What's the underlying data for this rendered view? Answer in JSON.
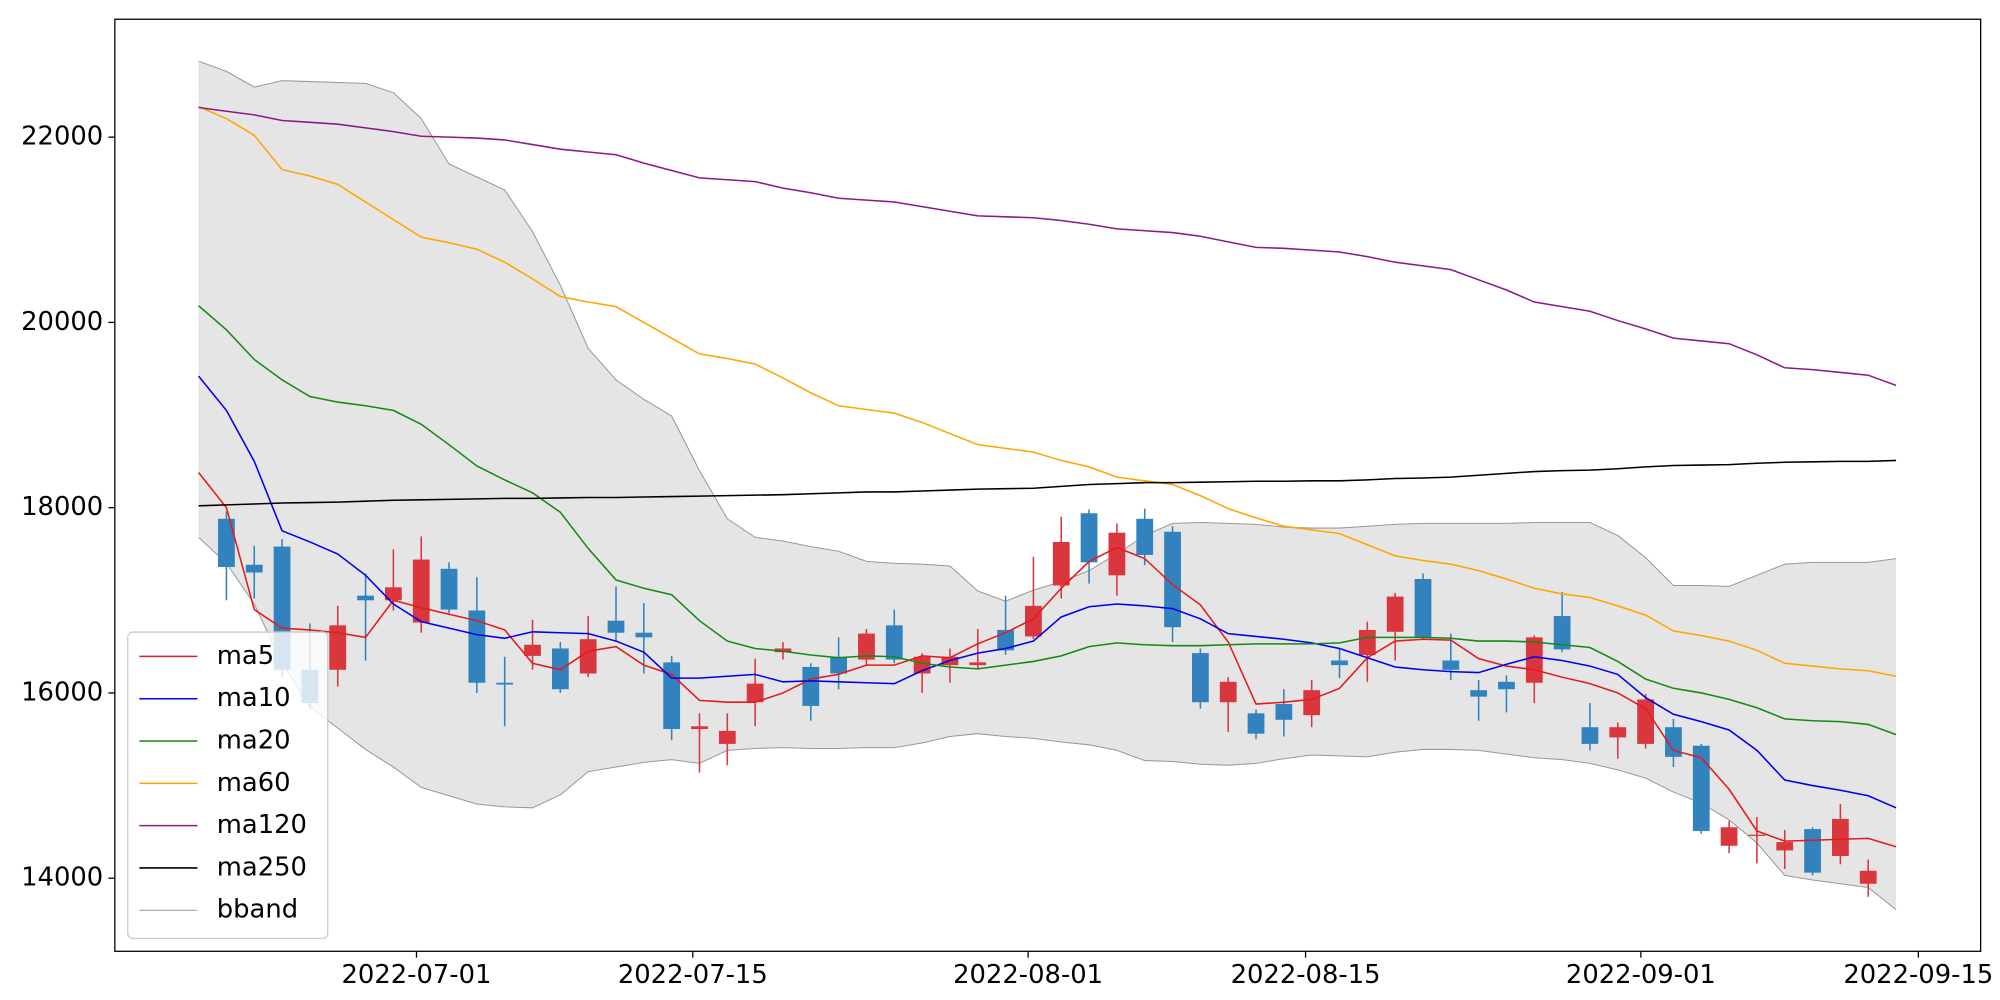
{
  "chart_data": {
    "type": "candlestick",
    "xlim": [
      -3.01,
      64.04
    ],
    "xticks": [
      {
        "value": 7.83,
        "label": "2022-07-01"
      },
      {
        "value": 17.76,
        "label": "2022-07-15"
      },
      {
        "value": 29.81,
        "label": "2022-08-01"
      },
      {
        "value": 39.78,
        "label": "2022-08-15"
      },
      {
        "value": 51.83,
        "label": "2022-09-01"
      },
      {
        "value": 61.8,
        "label": "2022-09-15"
      }
    ],
    "ylim": [
      13211,
      23273
    ],
    "yticks": [
      14000,
      16000,
      18000,
      20000,
      22000
    ],
    "legend": "lower left",
    "candles": {
      "up_color": "#d9363e",
      "down_color": "#3182bd",
      "open": [
        null,
        17880,
        17384,
        17580,
        16250,
        16250,
        17050,
        17000,
        16760,
        17340,
        16890,
        16110,
        16400,
        16480,
        16210,
        16780,
        16650,
        16330,
        15610,
        15450,
        15900,
        16440,
        16280,
        16390,
        16360,
        16730,
        16210,
        16300,
        16300,
        16680,
        16610,
        17160,
        17940,
        17270,
        17880,
        17740,
        16430,
        15900,
        15780,
        15880,
        15760,
        16350,
        16410,
        16660,
        17230,
        16350,
        16030,
        16120,
        16110,
        16830,
        15630,
        15520,
        15450,
        15630,
        15430,
        14350,
        14460,
        14300,
        14530,
        14240,
        13940,
        null
      ],
      "close": [
        null,
        17360,
        17300,
        16250,
        15890,
        16730,
        17000,
        17140,
        17440,
        16900,
        16110,
        16090,
        16520,
        16040,
        16580,
        16650,
        16600,
        15610,
        15640,
        15590,
        16100,
        16480,
        15860,
        16210,
        16640,
        16360,
        16390,
        16390,
        16330,
        16460,
        16940,
        17630,
        17410,
        17730,
        17490,
        16710,
        15900,
        16120,
        15560,
        15710,
        16030,
        16300,
        16680,
        17040,
        16600,
        16250,
        15960,
        16040,
        16600,
        16470,
        15450,
        15630,
        15930,
        15310,
        14510,
        14550,
        14470,
        14390,
        14060,
        14640,
        14080,
        null
      ],
      "high": [
        null,
        17960,
        17590,
        17660,
        16750,
        16940,
        17290,
        17550,
        17690,
        17410,
        17250,
        16390,
        16790,
        16550,
        16830,
        17150,
        16970,
        16400,
        15780,
        15780,
        16370,
        16550,
        16320,
        16600,
        16690,
        16900,
        16430,
        16480,
        16690,
        17050,
        17470,
        17900,
        17980,
        17830,
        17990,
        17800,
        16480,
        16170,
        15820,
        16040,
        16140,
        16480,
        16770,
        17080,
        17290,
        16640,
        16140,
        16190,
        16620,
        17090,
        15890,
        15680,
        15990,
        15720,
        15450,
        14620,
        14660,
        14520,
        14550,
        14800,
        14200,
        null
      ],
      "low": [
        null,
        17000,
        17020,
        16170,
        15830,
        16070,
        16350,
        16890,
        16650,
        16860,
        16000,
        15640,
        16250,
        16000,
        16170,
        16550,
        16210,
        15490,
        15140,
        15220,
        15640,
        16360,
        15700,
        16040,
        16300,
        16320,
        16000,
        16110,
        16260,
        16410,
        16580,
        17020,
        17180,
        17050,
        17380,
        16550,
        15830,
        15580,
        15500,
        15530,
        15630,
        16160,
        16120,
        16350,
        16580,
        16140,
        15700,
        15790,
        15890,
        16440,
        15380,
        15290,
        15400,
        15200,
        14480,
        14270,
        14160,
        14100,
        14030,
        14150,
        13800,
        null
      ]
    },
    "series": [
      {
        "name": "ma5",
        "color": "#e41a1c",
        "values": [
          18380,
          18000,
          16900,
          16700,
          16680,
          16650,
          16600,
          17000,
          16920,
          16850,
          16780,
          16680,
          16320,
          16250,
          16450,
          16500,
          16300,
          16200,
          15920,
          15900,
          15900,
          16000,
          16150,
          16200,
          16300,
          16300,
          16400,
          16380,
          16530,
          16650,
          16800,
          17130,
          17420,
          17570,
          17450,
          17170,
          16950,
          16550,
          15880,
          15900,
          15930,
          16050,
          16380,
          16560,
          16580,
          16570,
          16370,
          16290,
          16250,
          16170,
          16100,
          16000,
          15830,
          15380,
          15300,
          14960,
          14510,
          14400,
          14410,
          14420,
          14430,
          14340
        ]
      },
      {
        "name": "ma10",
        "color": "#0000ee",
        "values": [
          19420,
          19050,
          18500,
          17750,
          17630,
          17500,
          17270,
          16960,
          16770,
          16700,
          16630,
          16590,
          16660,
          16650,
          16640,
          16560,
          16440,
          16160,
          16160,
          16180,
          16200,
          16120,
          16130,
          16120,
          16110,
          16100,
          16240,
          16350,
          16430,
          16480,
          16560,
          16820,
          16930,
          16960,
          16940,
          16910,
          16800,
          16640,
          16610,
          16580,
          16540,
          16480,
          16380,
          16280,
          16250,
          16230,
          16220,
          16310,
          16390,
          16350,
          16290,
          16200,
          15950,
          15770,
          15690,
          15600,
          15380,
          15060,
          15000,
          14950,
          14890,
          14760
        ]
      },
      {
        "name": "ma20",
        "color": "#138a13",
        "values": [
          20180,
          19920,
          19600,
          19380,
          19200,
          19140,
          19100,
          19050,
          18900,
          18680,
          18450,
          18300,
          18160,
          17950,
          17560,
          17220,
          17130,
          17060,
          16780,
          16560,
          16480,
          16450,
          16410,
          16380,
          16400,
          16390,
          16320,
          16280,
          16260,
          16300,
          16340,
          16400,
          16500,
          16540,
          16520,
          16510,
          16510,
          16520,
          16530,
          16530,
          16530,
          16540,
          16600,
          16600,
          16600,
          16590,
          16560,
          16560,
          16550,
          16520,
          16490,
          16340,
          16150,
          16050,
          16000,
          15930,
          15840,
          15720,
          15700,
          15690,
          15660,
          15550
        ]
      },
      {
        "name": "ma60",
        "color": "#ffa500",
        "values": [
          22330,
          22200,
          22020,
          21650,
          21580,
          21490,
          21300,
          21110,
          20920,
          20860,
          20790,
          20650,
          20470,
          20280,
          20220,
          20170,
          20000,
          19830,
          19660,
          19610,
          19550,
          19400,
          19240,
          19100,
          19060,
          19020,
          18920,
          18800,
          18680,
          18640,
          18600,
          18510,
          18440,
          18330,
          18290,
          18250,
          18130,
          17990,
          17890,
          17800,
          17760,
          17720,
          17600,
          17480,
          17430,
          17390,
          17320,
          17230,
          17130,
          17070,
          17030,
          16940,
          16840,
          16670,
          16620,
          16560,
          16460,
          16320,
          16290,
          16260,
          16240,
          16180
        ]
      },
      {
        "name": "ma120",
        "color": "#8b1a8b",
        "values": [
          22320,
          22280,
          22240,
          22180,
          22160,
          22140,
          22100,
          22060,
          22010,
          22000,
          21990,
          21970,
          21920,
          21870,
          21840,
          21810,
          21720,
          21640,
          21560,
          21540,
          21520,
          21450,
          21400,
          21340,
          21320,
          21300,
          21250,
          21200,
          21150,
          21140,
          21130,
          21100,
          21060,
          21010,
          20990,
          20970,
          20930,
          20870,
          20810,
          20800,
          20780,
          20760,
          20710,
          20650,
          20610,
          20570,
          20460,
          20350,
          20220,
          20170,
          20120,
          20020,
          19930,
          19830,
          19800,
          19770,
          19650,
          19510,
          19490,
          19460,
          19430,
          19320
        ]
      },
      {
        "name": "ma250",
        "color": "#000000",
        "values": [
          18020,
          18030,
          18040,
          18050,
          18055,
          18060,
          18070,
          18080,
          18085,
          18090,
          18095,
          18100,
          18100,
          18105,
          18110,
          18110,
          18115,
          18120,
          18125,
          18130,
          18135,
          18140,
          18150,
          18160,
          18170,
          18170,
          18180,
          18190,
          18200,
          18205,
          18210,
          18230,
          18250,
          18260,
          18270,
          18270,
          18275,
          18280,
          18285,
          18285,
          18290,
          18290,
          18300,
          18315,
          18320,
          18330,
          18350,
          18370,
          18390,
          18400,
          18405,
          18420,
          18440,
          18455,
          18460,
          18465,
          18480,
          18490,
          18495,
          18500,
          18500,
          18510
        ]
      }
    ],
    "band": {
      "name": "bband",
      "color": "#999999",
      "fill": "#e5e5e5",
      "upper": [
        22820,
        22710,
        22540,
        22610,
        22600,
        22590,
        22580,
        22480,
        22200,
        21710,
        21570,
        21430,
        20980,
        20400,
        19720,
        19380,
        19170,
        18990,
        18400,
        17880,
        17680,
        17640,
        17580,
        17530,
        17420,
        17400,
        17390,
        17370,
        17100,
        16990,
        17110,
        17200,
        17320,
        17500,
        17700,
        17830,
        17840,
        17830,
        17820,
        17790,
        17780,
        17780,
        17800,
        17820,
        17830,
        17830,
        17830,
        17830,
        17840,
        17840,
        17840,
        17700,
        17460,
        17160,
        17160,
        17150,
        17270,
        17390,
        17410,
        17410,
        17410,
        17450
      ],
      "lower": [
        17680,
        17400,
        16960,
        16320,
        15850,
        15620,
        15390,
        15200,
        14980,
        14890,
        14800,
        14770,
        14760,
        14900,
        15150,
        15200,
        15250,
        15280,
        15240,
        15380,
        15400,
        15410,
        15400,
        15400,
        15410,
        15410,
        15460,
        15530,
        15560,
        15530,
        15510,
        15470,
        15440,
        15380,
        15270,
        15260,
        15230,
        15220,
        15240,
        15290,
        15330,
        15320,
        15310,
        15360,
        15390,
        15390,
        15380,
        15340,
        15300,
        15280,
        15240,
        15170,
        15080,
        14930,
        14810,
        14630,
        14380,
        14030,
        13980,
        13940,
        13900,
        13660
      ]
    }
  }
}
